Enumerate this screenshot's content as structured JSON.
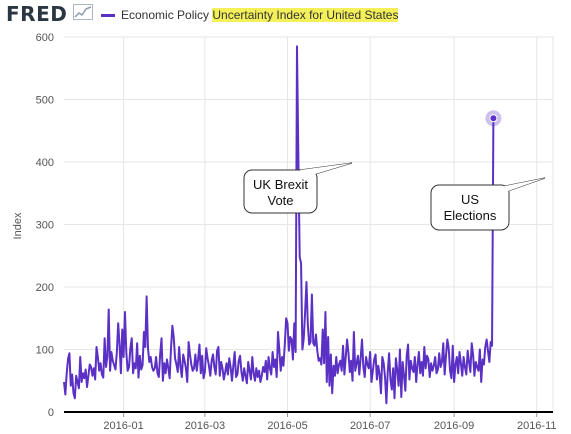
{
  "header": {
    "logo": "FRED",
    "legend_text": "Economic Policy ",
    "legend_highlight": "Uncertainty Index for United States"
  },
  "colors": {
    "series": "#5b30c5",
    "highlight": "#f4f05a",
    "axis": "#000000",
    "grid": "#e6e6e6"
  },
  "chart_data": {
    "type": "line",
    "ylabel": "Index",
    "ylim": [
      0,
      600
    ],
    "yticks": [
      0,
      100,
      200,
      300,
      400,
      500,
      600
    ],
    "xlim": [
      "2015-11-18",
      "2016-11-13"
    ],
    "xticks": [
      {
        "date": "2016-01-01",
        "label": "2016-01"
      },
      {
        "date": "2016-03-01",
        "label": "2016-03"
      },
      {
        "date": "2016-05-01",
        "label": "2016-05"
      },
      {
        "date": "2016-07-01",
        "label": "2016-07"
      },
      {
        "date": "2016-09-01",
        "label": "2016-09"
      },
      {
        "date": "2016-11-01",
        "label": "2016-11"
      }
    ],
    "grid": true,
    "series": [
      {
        "values": [
          48,
          28,
          62,
          85,
          94,
          42,
          60,
          30,
          22,
          58,
          48,
          38,
          88,
          48,
          62,
          54,
          68,
          40,
          58,
          76,
          72,
          58,
          70,
          52,
          104,
          88,
          66,
          78,
          60,
          55,
          118,
          72,
          88,
          164,
          66,
          96,
          82,
          75,
          68,
          95,
          142,
          108,
          62,
          132,
          88,
          160,
          96,
          66,
          72,
          102,
          118,
          62,
          78,
          70,
          110,
          55,
          90,
          68,
          75,
          128,
          104,
          185,
          102,
          80,
          88,
          72,
          66,
          70,
          88,
          62,
          56,
          92,
          118,
          50,
          78,
          62,
          84,
          70,
          54,
          102,
          138,
          120,
          86,
          76,
          64,
          104,
          72,
          56,
          92,
          82,
          70,
          48,
          112,
          92,
          76,
          66,
          70,
          92,
          66,
          84,
          108,
          62,
          90,
          54,
          64,
          102,
          86,
          74,
          58,
          82,
          92,
          72,
          60,
          98,
          104,
          58,
          80,
          70,
          52,
          64,
          78,
          60,
          86,
          72,
          50,
          74,
          96,
          56,
          60,
          82,
          90,
          64,
          50,
          70,
          58,
          46,
          80,
          66,
          52,
          88,
          62,
          50,
          70,
          56,
          66,
          48,
          58,
          72,
          64,
          82,
          52,
          88,
          70,
          60,
          96,
          72,
          84,
          56,
          128,
          98,
          66,
          88,
          74,
          108,
          150,
          142,
          98,
          120,
          116,
          84,
          142,
          96,
          585,
          410,
          248,
          238,
          100,
          118,
          160,
          208,
          140,
          108,
          112,
          188,
          110,
          106,
          124,
          98,
          82,
          86,
          76,
          132,
          78,
          160,
          48,
          120,
          42,
          92,
          30,
          74,
          58,
          88,
          62,
          76,
          82,
          66,
          106,
          60,
          88,
          116,
          94,
          64,
          82,
          50,
          128,
          66,
          78,
          90,
          60,
          86,
          116,
          72,
          56,
          88,
          76,
          70,
          96,
          48,
          66,
          84,
          92,
          52,
          74,
          60,
          30,
          88,
          78,
          56,
          14,
          64,
          94,
          52,
          36,
          70,
          22,
          86,
          68,
          42,
          100,
          24,
          80,
          58,
          34,
          90,
          108,
          52,
          82,
          70,
          64,
          88,
          48,
          76,
          96,
          62,
          80,
          58,
          104,
          70,
          90,
          84,
          56,
          78,
          66,
          74,
          88,
          62,
          68,
          94,
          72,
          80,
          110,
          60,
          90,
          116,
          102,
          66,
          54,
          106,
          48,
          76,
          88,
          62,
          96,
          78,
          58,
          88,
          72,
          60,
          98,
          80,
          64,
          110,
          92,
          58,
          80,
          72,
          66,
          100,
          48,
          84,
          76,
          104,
          116,
          98,
          80,
          112,
          106,
          470
        ]
      }
    ],
    "annotations": [
      {
        "lines": [
          "UK Brexit",
          "Vote"
        ]
      },
      {
        "lines": [
          "US",
          "Elections"
        ]
      }
    ]
  }
}
